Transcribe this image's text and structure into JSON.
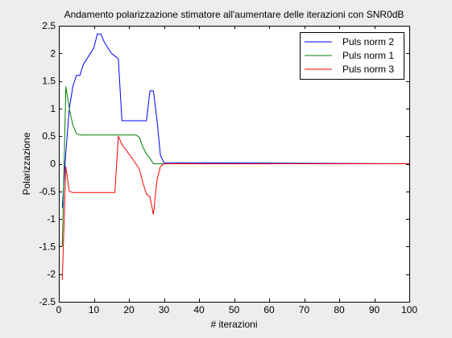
{
  "chart_data": {
    "type": "line",
    "title": "Andamento polarizzazione stimatore all'aumentare delle iterazioni con SNR0dB",
    "xlabel": "# iterazioni",
    "ylabel": "Polarizzazione",
    "xlim": [
      0,
      100
    ],
    "ylim": [
      -2.5,
      2.5
    ],
    "xticks": [
      0,
      10,
      20,
      30,
      40,
      50,
      60,
      70,
      80,
      90,
      100
    ],
    "yticks": [
      -2.5,
      -2,
      -1.5,
      -1,
      -0.5,
      0,
      0.5,
      1,
      1.5,
      2,
      2.5
    ],
    "xtick_labels": [
      "0",
      "10",
      "20",
      "30",
      "40",
      "50",
      "60",
      "70",
      "80",
      "90",
      "100"
    ],
    "ytick_labels": [
      "-2.5",
      "-2",
      "-1.5",
      "-1",
      "-0.5",
      "0",
      "0.5",
      "1",
      "1.5",
      "2",
      "2.5"
    ],
    "grid": false,
    "legend_position": "top-right",
    "series": [
      {
        "name": "Puls norm 2",
        "color": "#0000ff",
        "x": [
          1,
          2,
          3,
          4,
          5,
          6,
          7,
          8,
          9,
          10,
          11,
          12,
          13,
          14,
          15,
          16,
          17,
          18,
          19,
          20,
          21,
          22,
          23,
          24,
          25,
          26,
          27,
          28,
          29,
          30,
          100
        ],
        "y": [
          -0.8,
          0.2,
          1.0,
          1.4,
          1.6,
          1.6,
          1.8,
          1.9,
          2.0,
          2.1,
          2.35,
          2.35,
          2.2,
          2.1,
          2.0,
          1.95,
          1.9,
          0.78,
          0.78,
          0.78,
          0.78,
          0.78,
          0.78,
          0.78,
          0.78,
          1.32,
          1.32,
          0.8,
          0.15,
          0.02,
          0.0
        ]
      },
      {
        "name": "Puls norm 1",
        "color": "#008000",
        "x": [
          1,
          2,
          3,
          4,
          5,
          6,
          8,
          10,
          12,
          14,
          16,
          18,
          20,
          22,
          23,
          24,
          25,
          26,
          27,
          28,
          29,
          30,
          100
        ],
        "y": [
          -1.5,
          1.4,
          1.0,
          0.7,
          0.55,
          0.52,
          0.52,
          0.52,
          0.52,
          0.52,
          0.52,
          0.52,
          0.52,
          0.52,
          0.48,
          0.3,
          0.18,
          0.1,
          0.0,
          0.0,
          0.0,
          0.0,
          0.0
        ]
      },
      {
        "name": "Puls norm 3",
        "color": "#ff0000",
        "x": [
          1,
          2,
          3,
          4,
          6,
          8,
          10,
          12,
          14,
          16,
          17,
          18,
          20,
          22,
          23,
          24,
          25,
          26,
          27,
          28,
          29,
          30,
          100
        ],
        "y": [
          -2.1,
          -0.05,
          -0.5,
          -0.52,
          -0.52,
          -0.52,
          -0.52,
          -0.52,
          -0.52,
          -0.52,
          0.5,
          0.35,
          0.18,
          0.0,
          -0.1,
          -0.35,
          -0.55,
          -0.6,
          -0.92,
          -0.3,
          -0.05,
          0.0,
          0.0
        ]
      }
    ]
  }
}
